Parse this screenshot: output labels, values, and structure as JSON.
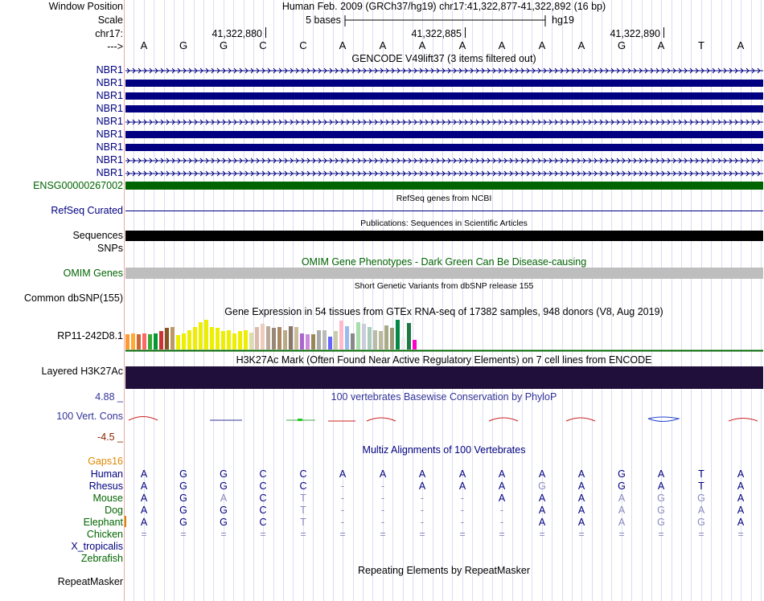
{
  "header": {
    "window_position_label": "Window Position",
    "window_position": "Human Feb. 2009 (GRCh37/hg19)   chr17:41,322,877-41,322,892 (16 bp)",
    "scale_label": "Scale",
    "scale_text": "5 bases",
    "scale_assembly": "hg19",
    "chrom_label": "chr17:",
    "strand_label": "--->",
    "coords": [
      "41,322,880",
      "41,322,885",
      "41,322,890"
    ],
    "bases": [
      "A",
      "G",
      "G",
      "C",
      "C",
      "A",
      "A",
      "A",
      "A",
      "A",
      "A",
      "A",
      "G",
      "A",
      "T",
      "A"
    ]
  },
  "gencode": {
    "title": "GENCODE V49lift37 (3 items filtered out)",
    "tracks": [
      {
        "label": "NBR1",
        "style": "arrows"
      },
      {
        "label": "NBR1",
        "style": "thick"
      },
      {
        "label": "NBR1",
        "style": "thick"
      },
      {
        "label": "NBR1",
        "style": "thick"
      },
      {
        "label": "NBR1",
        "style": "arrows"
      },
      {
        "label": "NBR1",
        "style": "thick"
      },
      {
        "label": "NBR1",
        "style": "thick"
      },
      {
        "label": "NBR1",
        "style": "arrows"
      },
      {
        "label": "NBR1",
        "style": "arrows"
      }
    ],
    "ensg_label": "ENSG00000267002"
  },
  "refseq": {
    "title": "RefSeq genes from NCBI",
    "label": "RefSeq Curated"
  },
  "publications": {
    "title": "Publications: Sequences in Scientific Articles",
    "label": "Sequences"
  },
  "snps_label": "SNPs",
  "omim": {
    "title": "OMIM Gene Phenotypes - Dark Green Can Be Disease-causing",
    "label": "OMIM Genes"
  },
  "dbsnp": {
    "title": "Short Genetic Variants from dbSNP release 155",
    "label": "Common dbSNP(155)"
  },
  "gtex": {
    "title": "Gene Expression in 54 tissues from GTEx RNA-seq of 17382 samples, 948 donors (V8, Aug 2019)",
    "label": "RP11-242D8.1",
    "bars": [
      {
        "value": 0.48,
        "color": "#ff9933"
      },
      {
        "value": 0.52,
        "color": "#ffaa33"
      },
      {
        "value": 0.48,
        "color": "#cc6633"
      },
      {
        "value": 0.52,
        "color": "#ff6666"
      },
      {
        "value": 0.48,
        "color": "#33aa33"
      },
      {
        "value": 0.52,
        "color": "#009933"
      },
      {
        "value": 0.58,
        "color": "#cc3333"
      },
      {
        "value": 0.68,
        "color": "#885522"
      },
      {
        "value": 0.72,
        "color": "#bb9966"
      },
      {
        "value": 0.45,
        "color": "#eeee00"
      },
      {
        "value": 0.52,
        "color": "#eeee00"
      },
      {
        "value": 0.62,
        "color": "#eeee00"
      },
      {
        "value": 0.72,
        "color": "#eeee00"
      },
      {
        "value": 0.88,
        "color": "#eeee00"
      },
      {
        "value": 0.95,
        "color": "#eeee00"
      },
      {
        "value": 0.72,
        "color": "#eeee00"
      },
      {
        "value": 0.68,
        "color": "#eeee00"
      },
      {
        "value": 0.58,
        "color": "#eeee00"
      },
      {
        "value": 0.62,
        "color": "#eeee00"
      },
      {
        "value": 0.52,
        "color": "#eeee00"
      },
      {
        "value": 0.58,
        "color": "#eeee00"
      },
      {
        "value": 0.62,
        "color": "#eeee00"
      },
      {
        "value": 0.55,
        "color": "#ddddaa"
      },
      {
        "value": 0.72,
        "color": "#ddbbaa"
      },
      {
        "value": 0.82,
        "color": "#eeccbb"
      },
      {
        "value": 0.75,
        "color": "#bbaa99"
      },
      {
        "value": 0.68,
        "color": "#998877"
      },
      {
        "value": 0.72,
        "color": "#aa8866"
      },
      {
        "value": 0.62,
        "color": "#bbaa88"
      },
      {
        "value": 0.75,
        "color": "#887766"
      },
      {
        "value": 0.72,
        "color": "#ccbb99"
      },
      {
        "value": 0.52,
        "color": "#aa66cc"
      },
      {
        "value": 0.48,
        "color": "#cc88dd"
      },
      {
        "value": 0.48,
        "color": "#998855"
      },
      {
        "value": 0.62,
        "color": "#aaaaaa"
      },
      {
        "value": 0.62,
        "color": "#bbbbbb"
      },
      {
        "value": 0.42,
        "color": "#6666ff"
      },
      {
        "value": 0.58,
        "color": "#ccccaa"
      },
      {
        "value": 0.92,
        "color": "#ffbbcc"
      },
      {
        "value": 0.75,
        "color": "#99bbee"
      },
      {
        "value": 0.52,
        "color": "#888888"
      },
      {
        "value": 0.88,
        "color": "#aaddaa"
      },
      {
        "value": 0.82,
        "color": "#ccccdd"
      },
      {
        "value": 0.72,
        "color": "#aaccbb"
      },
      {
        "value": 0.62,
        "color": "#bbbbaa"
      },
      {
        "value": 0.58,
        "color": "#bbbb99"
      },
      {
        "value": 0.78,
        "color": "#aaaa88"
      },
      {
        "value": 0.68,
        "color": "#999977"
      },
      {
        "value": 0.95,
        "color": "#008844"
      },
      {
        "value": 0.38,
        "color": "#eeeeee"
      },
      {
        "value": 0.85,
        "color": "#227744"
      },
      {
        "value": 0.32,
        "color": "#ff00cc"
      }
    ]
  },
  "h3k27ac": {
    "title": "H3K27Ac Mark (Often Found Near Active Regulatory Elements) on 7 cell lines from ENCODE",
    "label": "Layered H3K27Ac"
  },
  "conservation": {
    "title": "100 vertebrates Basewise Conservation by PhyloP",
    "label": "100 Vert. Cons",
    "ymax": "4.88 _",
    "ymin": "-4.5 _"
  },
  "multiz": {
    "title": "Multiz Alignments of 100 Vertebrates",
    "gaps_label": "Gaps",
    "gaps_count": "16",
    "species": [
      {
        "name": "Human",
        "color": "#000080",
        "bases": [
          "A",
          "G",
          "G",
          "C",
          "C",
          "A",
          "A",
          "A",
          "A",
          "A",
          "A",
          "A",
          "G",
          "A",
          "T",
          "A"
        ]
      },
      {
        "name": "Rhesus",
        "color": "#000080",
        "bases": [
          "A",
          "G",
          "G",
          "C",
          "C",
          "-",
          "-",
          "A",
          "A",
          "A",
          "G",
          "A",
          "G",
          "A",
          "T",
          "A"
        ]
      },
      {
        "name": "Mouse",
        "color": "#006600",
        "bases": [
          "A",
          "G",
          "A",
          "C",
          "T",
          "-",
          "-",
          "-",
          "-",
          "A",
          "A",
          "A",
          "A",
          "G",
          "G",
          "A"
        ]
      },
      {
        "name": "Dog",
        "color": "#006600",
        "bases": [
          "A",
          "G",
          "G",
          "C",
          "T",
          "-",
          "-",
          "-",
          "-",
          "-",
          "A",
          "A",
          "A",
          "G",
          "A",
          "A"
        ]
      },
      {
        "name": "Elephant",
        "color": "#006600",
        "bases": [
          "A",
          "G",
          "G",
          "C",
          "T",
          "-",
          "-",
          "-",
          "-",
          "-",
          "A",
          "A",
          "A",
          "G",
          "G",
          "A"
        ]
      },
      {
        "name": "Chicken",
        "color": "#006600",
        "bases": [
          "=",
          "=",
          "=",
          "=",
          "=",
          "=",
          "=",
          "=",
          "=",
          "=",
          "=",
          "=",
          "=",
          "=",
          "=",
          "="
        ]
      },
      {
        "name": "X_tropicalis",
        "color": "#000080",
        "bases": []
      },
      {
        "name": "Zebrafish",
        "color": "#006600",
        "bases": []
      }
    ]
  },
  "repeatmasker": {
    "title": "Repeating Elements by RepeatMasker",
    "label": "RepeatMasker"
  },
  "colors": {
    "navy": "#000080",
    "green": "#006400",
    "omim_bar": "#bebebe",
    "h3k27ac_bar": "#1f0f3a",
    "gaps": "#dd8800",
    "conservation_title": "#333399",
    "ymin_color": "#8b2500"
  }
}
